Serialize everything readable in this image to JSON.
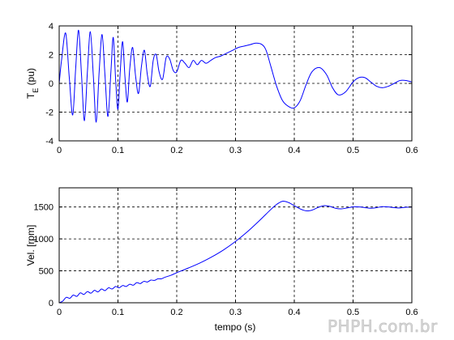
{
  "watermark": "PHPH.com.br",
  "chart_data": [
    {
      "type": "line",
      "xlabel": "",
      "ylabel": "T",
      "ylabel_sub": "E",
      "ylabel_unit": " (pu)",
      "xlim": [
        0,
        0.6
      ],
      "ylim": [
        -4,
        4
      ],
      "xticks": [
        "0",
        "0.1",
        "0.2",
        "0.3",
        "0.4",
        "0.5",
        "0.6"
      ],
      "yticks": [
        "-4",
        "-2",
        "0",
        "2",
        "4"
      ],
      "grid": true,
      "line_color": "#0000ff",
      "x": [
        0.0,
        0.004,
        0.011,
        0.017,
        0.023,
        0.028,
        0.033,
        0.038,
        0.043,
        0.048,
        0.053,
        0.058,
        0.063,
        0.068,
        0.073,
        0.078,
        0.083,
        0.088,
        0.092,
        0.096,
        0.1,
        0.104,
        0.108,
        0.112,
        0.116,
        0.12,
        0.125,
        0.13,
        0.135,
        0.14,
        0.145,
        0.15,
        0.155,
        0.16,
        0.165,
        0.17,
        0.176,
        0.182,
        0.188,
        0.194,
        0.2,
        0.207,
        0.214,
        0.221,
        0.228,
        0.235,
        0.242,
        0.25,
        0.258,
        0.266,
        0.275,
        0.285,
        0.295,
        0.305,
        0.315,
        0.325,
        0.335,
        0.345,
        0.352,
        0.36,
        0.37,
        0.38,
        0.39,
        0.4,
        0.41,
        0.42,
        0.43,
        0.443,
        0.455,
        0.465,
        0.475,
        0.487,
        0.5,
        0.51,
        0.52,
        0.53,
        0.54,
        0.55,
        0.56,
        0.57,
        0.58,
        0.59,
        0.6
      ],
      "y": [
        0.0,
        1.6,
        3.5,
        0.5,
        -2.2,
        1.0,
        3.7,
        0.6,
        -2.6,
        0.8,
        3.6,
        0.6,
        -2.7,
        0.8,
        3.4,
        0.5,
        -2.3,
        0.8,
        3.2,
        0.3,
        -1.8,
        0.9,
        2.9,
        0.4,
        -1.3,
        1.0,
        2.5,
        0.5,
        -0.7,
        1.2,
        2.3,
        0.6,
        -0.2,
        1.6,
        2.0,
        0.8,
        0.3,
        1.8,
        1.7,
        0.9,
        0.8,
        1.6,
        1.4,
        1.1,
        1.6,
        1.3,
        1.6,
        1.4,
        1.6,
        1.8,
        1.9,
        2.1,
        2.3,
        2.5,
        2.6,
        2.7,
        2.8,
        2.7,
        2.3,
        1.2,
        -0.2,
        -1.2,
        -1.6,
        -1.7,
        -1.2,
        -0.1,
        0.8,
        1.1,
        0.6,
        -0.3,
        -0.8,
        -0.6,
        0.1,
        0.4,
        0.4,
        0.1,
        -0.2,
        -0.3,
        -0.2,
        0.0,
        0.2,
        0.2,
        0.1
      ]
    },
    {
      "type": "line",
      "xlabel": "tempo (s)",
      "ylabel": "Vel. [rpm]",
      "xlim": [
        0,
        0.6
      ],
      "ylim": [
        0,
        1800
      ],
      "xticks": [
        "0",
        "0.1",
        "0.2",
        "0.3",
        "0.4",
        "0.5",
        "0.6"
      ],
      "yticks": [
        "0",
        "500",
        "1000",
        "1500"
      ],
      "grid": true,
      "line_color": "#0000ff",
      "x": [
        0.0,
        0.006,
        0.012,
        0.018,
        0.024,
        0.03,
        0.036,
        0.042,
        0.048,
        0.054,
        0.06,
        0.066,
        0.072,
        0.078,
        0.084,
        0.09,
        0.096,
        0.102,
        0.108,
        0.114,
        0.12,
        0.126,
        0.132,
        0.138,
        0.144,
        0.15,
        0.156,
        0.162,
        0.168,
        0.174,
        0.18,
        0.19,
        0.2,
        0.22,
        0.24,
        0.26,
        0.28,
        0.3,
        0.32,
        0.34,
        0.36,
        0.37,
        0.38,
        0.39,
        0.4,
        0.41,
        0.42,
        0.43,
        0.44,
        0.45,
        0.46,
        0.47,
        0.48,
        0.49,
        0.5,
        0.51,
        0.52,
        0.53,
        0.54,
        0.55,
        0.56,
        0.57,
        0.58,
        0.59,
        0.6
      ],
      "y": [
        0,
        25,
        85,
        70,
        120,
        100,
        155,
        130,
        175,
        150,
        195,
        170,
        215,
        190,
        235,
        215,
        255,
        235,
        270,
        255,
        290,
        275,
        315,
        300,
        335,
        325,
        355,
        350,
        375,
        375,
        400,
        430,
        470,
        545,
        625,
        720,
        830,
        960,
        1110,
        1280,
        1460,
        1540,
        1590,
        1570,
        1520,
        1470,
        1440,
        1450,
        1490,
        1520,
        1510,
        1480,
        1470,
        1485,
        1500,
        1500,
        1490,
        1480,
        1490,
        1505,
        1500,
        1490,
        1485,
        1495,
        1500
      ]
    }
  ]
}
